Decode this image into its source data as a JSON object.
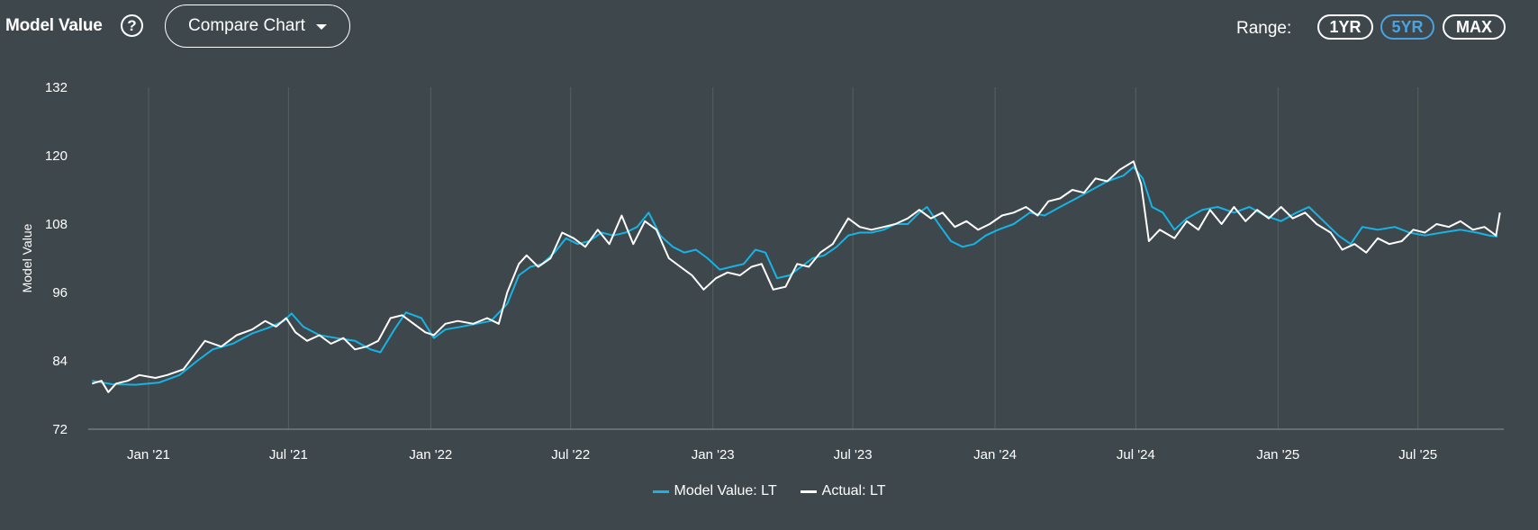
{
  "header": {
    "title": "Model Value",
    "help_icon": "question-circle-icon",
    "compare_label": "Compare Chart"
  },
  "range": {
    "label": "Range:",
    "options": [
      "1YR",
      "5YR",
      "MAX"
    ],
    "selected": "5YR"
  },
  "colors": {
    "background": "#3e484c",
    "model": "#16b4e6",
    "actual": "#ffffff",
    "active_range": "#4aa3e0"
  },
  "chart_data": {
    "type": "line",
    "ylabel": "Model Value",
    "xlabel": "",
    "ylim": [
      72,
      132
    ],
    "yticks": [
      72,
      84,
      96,
      108,
      120,
      132
    ],
    "xlim": [
      "2020-10-15",
      "2025-10-20"
    ],
    "xticks": [
      {
        "date": "2021-01-01",
        "label": "Jan '21"
      },
      {
        "date": "2021-07-01",
        "label": "Jul '21"
      },
      {
        "date": "2022-01-01",
        "label": "Jan '22"
      },
      {
        "date": "2022-07-01",
        "label": "Jul '22"
      },
      {
        "date": "2023-01-01",
        "label": "Jan '23"
      },
      {
        "date": "2023-07-01",
        "label": "Jul '23"
      },
      {
        "date": "2024-01-01",
        "label": "Jan '24"
      },
      {
        "date": "2024-07-01",
        "label": "Jul '24"
      },
      {
        "date": "2025-01-01",
        "label": "Jan '25"
      },
      {
        "date": "2025-07-01",
        "label": "Jul '25"
      }
    ],
    "grid": "vertical",
    "legend_position": "bottom-center",
    "series": [
      {
        "name": "Model Value: LT",
        "color": "#16b4e6",
        "points": [
          [
            "2020-10-20",
            80.5
          ],
          [
            "2020-11-15",
            79.9
          ],
          [
            "2020-12-15",
            79.8
          ],
          [
            "2021-01-15",
            80.2
          ],
          [
            "2021-02-10",
            81.5
          ],
          [
            "2021-03-05",
            84.0
          ],
          [
            "2021-03-25",
            86.0
          ],
          [
            "2021-04-20",
            87.0
          ],
          [
            "2021-05-15",
            88.8
          ],
          [
            "2021-06-05",
            89.8
          ],
          [
            "2021-06-25",
            91.0
          ],
          [
            "2021-07-05",
            92.3
          ],
          [
            "2021-07-20",
            90.0
          ],
          [
            "2021-08-10",
            88.5
          ],
          [
            "2021-09-01",
            88.0
          ],
          [
            "2021-09-25",
            87.5
          ],
          [
            "2021-10-15",
            86.0
          ],
          [
            "2021-10-28",
            85.5
          ],
          [
            "2021-11-15",
            89.5
          ],
          [
            "2021-11-30",
            92.5
          ],
          [
            "2021-12-20",
            91.5
          ],
          [
            "2022-01-05",
            88.0
          ],
          [
            "2022-01-20",
            89.5
          ],
          [
            "2022-02-10",
            90.0
          ],
          [
            "2022-03-01",
            90.5
          ],
          [
            "2022-03-20",
            91.0
          ],
          [
            "2022-04-10",
            94.0
          ],
          [
            "2022-04-25",
            99.0
          ],
          [
            "2022-05-10",
            100.5
          ],
          [
            "2022-05-25",
            101.0
          ],
          [
            "2022-06-10",
            103.0
          ],
          [
            "2022-06-25",
            105.5
          ],
          [
            "2022-07-10",
            104.5
          ],
          [
            "2022-07-25",
            105.0
          ],
          [
            "2022-08-10",
            106.5
          ],
          [
            "2022-08-25",
            106.0
          ],
          [
            "2022-09-10",
            106.5
          ],
          [
            "2022-09-25",
            107.5
          ],
          [
            "2022-10-10",
            110.0
          ],
          [
            "2022-10-25",
            106.0
          ],
          [
            "2022-11-10",
            104.0
          ],
          [
            "2022-11-25",
            103.0
          ],
          [
            "2022-12-10",
            103.5
          ],
          [
            "2022-12-25",
            102.0
          ],
          [
            "2023-01-10",
            100.0
          ],
          [
            "2023-01-25",
            100.5
          ],
          [
            "2023-02-10",
            101.0
          ],
          [
            "2023-02-25",
            103.5
          ],
          [
            "2023-03-10",
            103.0
          ],
          [
            "2023-03-25",
            98.5
          ],
          [
            "2023-04-10",
            99.0
          ],
          [
            "2023-04-25",
            100.5
          ],
          [
            "2023-05-10",
            102.0
          ],
          [
            "2023-05-25",
            102.5
          ],
          [
            "2023-06-10",
            104.0
          ],
          [
            "2023-06-25",
            106.0
          ],
          [
            "2023-07-10",
            106.5
          ],
          [
            "2023-07-25",
            106.5
          ],
          [
            "2023-08-10",
            107.0
          ],
          [
            "2023-08-25",
            108.0
          ],
          [
            "2023-09-10",
            108.0
          ],
          [
            "2023-09-25",
            110.0
          ],
          [
            "2023-10-05",
            111.0
          ],
          [
            "2023-10-20",
            108.0
          ],
          [
            "2023-11-05",
            105.0
          ],
          [
            "2023-11-20",
            104.0
          ],
          [
            "2023-12-05",
            104.5
          ],
          [
            "2023-12-20",
            106.0
          ],
          [
            "2024-01-05",
            107.0
          ],
          [
            "2024-01-25",
            108.0
          ],
          [
            "2024-02-15",
            110.0
          ],
          [
            "2024-03-05",
            109.5
          ],
          [
            "2024-03-25",
            111.0
          ],
          [
            "2024-04-15",
            112.5
          ],
          [
            "2024-05-05",
            114.0
          ],
          [
            "2024-05-25",
            115.5
          ],
          [
            "2024-06-15",
            116.5
          ],
          [
            "2024-06-28",
            118.0
          ],
          [
            "2024-07-10",
            116.0
          ],
          [
            "2024-07-22",
            111.0
          ],
          [
            "2024-08-05",
            110.0
          ],
          [
            "2024-08-20",
            107.0
          ],
          [
            "2024-09-05",
            109.0
          ],
          [
            "2024-09-25",
            110.5
          ],
          [
            "2024-10-15",
            111.0
          ],
          [
            "2024-11-05",
            110.0
          ],
          [
            "2024-11-25",
            111.0
          ],
          [
            "2024-12-15",
            109.5
          ],
          [
            "2025-01-05",
            108.5
          ],
          [
            "2025-01-25",
            110.0
          ],
          [
            "2025-02-10",
            111.0
          ],
          [
            "2025-03-01",
            108.5
          ],
          [
            "2025-03-20",
            106.0
          ],
          [
            "2025-04-05",
            104.5
          ],
          [
            "2025-04-20",
            107.5
          ],
          [
            "2025-05-10",
            107.0
          ],
          [
            "2025-06-01",
            107.5
          ],
          [
            "2025-06-20",
            106.5
          ],
          [
            "2025-07-10",
            106.0
          ],
          [
            "2025-08-01",
            106.5
          ],
          [
            "2025-08-25",
            107.0
          ],
          [
            "2025-09-15",
            106.5
          ],
          [
            "2025-10-01",
            106.0
          ],
          [
            "2025-10-12",
            105.8
          ]
        ]
      },
      {
        "name": "Actual: LT",
        "color": "#ffffff",
        "points": [
          [
            "2020-10-20",
            80.0
          ],
          [
            "2020-11-01",
            80.5
          ],
          [
            "2020-11-10",
            78.5
          ],
          [
            "2020-11-20",
            80.0
          ],
          [
            "2020-12-05",
            80.5
          ],
          [
            "2020-12-20",
            81.5
          ],
          [
            "2021-01-10",
            81.0
          ],
          [
            "2021-01-25",
            81.5
          ],
          [
            "2021-02-15",
            82.5
          ],
          [
            "2021-03-01",
            85.0
          ],
          [
            "2021-03-15",
            87.5
          ],
          [
            "2021-04-05",
            86.5
          ],
          [
            "2021-04-25",
            88.5
          ],
          [
            "2021-05-15",
            89.5
          ],
          [
            "2021-06-01",
            91.0
          ],
          [
            "2021-06-15",
            90.0
          ],
          [
            "2021-06-28",
            91.5
          ],
          [
            "2021-07-10",
            89.0
          ],
          [
            "2021-07-25",
            87.5
          ],
          [
            "2021-08-10",
            88.5
          ],
          [
            "2021-08-25",
            87.0
          ],
          [
            "2021-09-10",
            88.0
          ],
          [
            "2021-09-25",
            86.0
          ],
          [
            "2021-10-10",
            86.5
          ],
          [
            "2021-10-25",
            87.5
          ],
          [
            "2021-11-10",
            91.5
          ],
          [
            "2021-11-25",
            92.0
          ],
          [
            "2021-12-10",
            90.5
          ],
          [
            "2021-12-25",
            89.0
          ],
          [
            "2022-01-05",
            88.5
          ],
          [
            "2022-01-20",
            90.5
          ],
          [
            "2022-02-05",
            91.0
          ],
          [
            "2022-02-25",
            90.5
          ],
          [
            "2022-03-15",
            91.5
          ],
          [
            "2022-03-30",
            90.5
          ],
          [
            "2022-04-10",
            96.0
          ],
          [
            "2022-04-25",
            101.0
          ],
          [
            "2022-05-05",
            102.5
          ],
          [
            "2022-05-20",
            100.5
          ],
          [
            "2022-06-05",
            102.0
          ],
          [
            "2022-06-20",
            106.5
          ],
          [
            "2022-07-05",
            105.5
          ],
          [
            "2022-07-20",
            104.0
          ],
          [
            "2022-08-05",
            107.0
          ],
          [
            "2022-08-20",
            104.5
          ],
          [
            "2022-09-05",
            109.5
          ],
          [
            "2022-09-20",
            104.5
          ],
          [
            "2022-10-05",
            108.5
          ],
          [
            "2022-10-20",
            107.0
          ],
          [
            "2022-11-05",
            102.0
          ],
          [
            "2022-11-20",
            100.5
          ],
          [
            "2022-12-05",
            99.0
          ],
          [
            "2022-12-20",
            96.5
          ],
          [
            "2023-01-05",
            98.5
          ],
          [
            "2023-01-20",
            99.5
          ],
          [
            "2023-02-05",
            99.0
          ],
          [
            "2023-02-20",
            100.5
          ],
          [
            "2023-03-05",
            101.0
          ],
          [
            "2023-03-20",
            96.5
          ],
          [
            "2023-04-05",
            97.0
          ],
          [
            "2023-04-20",
            101.0
          ],
          [
            "2023-05-05",
            100.5
          ],
          [
            "2023-05-20",
            103.0
          ],
          [
            "2023-06-05",
            104.5
          ],
          [
            "2023-06-25",
            109.0
          ],
          [
            "2023-07-10",
            107.5
          ],
          [
            "2023-07-25",
            107.0
          ],
          [
            "2023-08-10",
            107.5
          ],
          [
            "2023-08-25",
            108.0
          ],
          [
            "2023-09-10",
            109.0
          ],
          [
            "2023-09-25",
            110.5
          ],
          [
            "2023-10-10",
            109.0
          ],
          [
            "2023-10-25",
            110.0
          ],
          [
            "2023-11-10",
            107.5
          ],
          [
            "2023-11-25",
            108.5
          ],
          [
            "2023-12-10",
            107.0
          ],
          [
            "2023-12-25",
            108.0
          ],
          [
            "2024-01-10",
            109.5
          ],
          [
            "2024-01-25",
            110.0
          ],
          [
            "2024-02-10",
            111.0
          ],
          [
            "2024-02-25",
            109.5
          ],
          [
            "2024-03-10",
            112.0
          ],
          [
            "2024-03-25",
            112.5
          ],
          [
            "2024-04-10",
            114.0
          ],
          [
            "2024-04-25",
            113.5
          ],
          [
            "2024-05-10",
            116.0
          ],
          [
            "2024-05-25",
            115.5
          ],
          [
            "2024-06-10",
            117.5
          ],
          [
            "2024-06-28",
            119.0
          ],
          [
            "2024-07-08",
            115.0
          ],
          [
            "2024-07-18",
            105.0
          ],
          [
            "2024-08-01",
            107.0
          ],
          [
            "2024-08-20",
            105.5
          ],
          [
            "2024-09-05",
            108.5
          ],
          [
            "2024-09-20",
            107.0
          ],
          [
            "2024-10-05",
            110.5
          ],
          [
            "2024-10-20",
            108.0
          ],
          [
            "2024-11-05",
            111.0
          ],
          [
            "2024-11-20",
            108.5
          ],
          [
            "2024-12-05",
            110.5
          ],
          [
            "2024-12-20",
            109.0
          ],
          [
            "2025-01-05",
            111.0
          ],
          [
            "2025-01-20",
            109.0
          ],
          [
            "2025-02-05",
            110.0
          ],
          [
            "2025-02-20",
            108.0
          ],
          [
            "2025-03-10",
            106.5
          ],
          [
            "2025-03-25",
            103.5
          ],
          [
            "2025-04-10",
            104.5
          ],
          [
            "2025-04-25",
            103.0
          ],
          [
            "2025-05-10",
            105.5
          ],
          [
            "2025-05-25",
            104.5
          ],
          [
            "2025-06-10",
            105.0
          ],
          [
            "2025-06-25",
            107.0
          ],
          [
            "2025-07-10",
            106.5
          ],
          [
            "2025-07-25",
            108.0
          ],
          [
            "2025-08-10",
            107.5
          ],
          [
            "2025-08-25",
            108.5
          ],
          [
            "2025-09-10",
            107.0
          ],
          [
            "2025-09-25",
            107.5
          ],
          [
            "2025-10-05",
            106.5
          ],
          [
            "2025-10-10",
            106.0
          ],
          [
            "2025-10-15",
            110.0
          ]
        ]
      }
    ]
  }
}
